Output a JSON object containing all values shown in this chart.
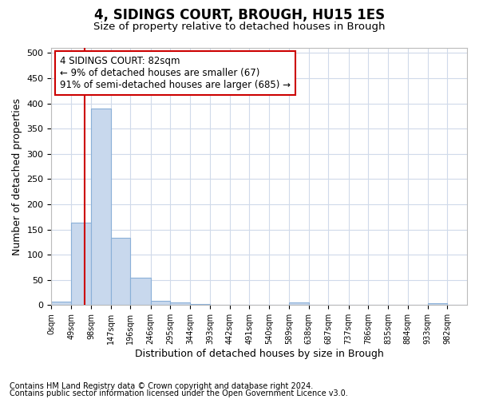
{
  "title1": "4, SIDINGS COURT, BROUGH, HU15 1ES",
  "title2": "Size of property relative to detached houses in Brough",
  "xlabel": "Distribution of detached houses by size in Brough",
  "ylabel": "Number of detached properties",
  "bin_edges": [
    0,
    49,
    98,
    147,
    196,
    246,
    295,
    344,
    393,
    442,
    491,
    540,
    589,
    638,
    687,
    737,
    786,
    835,
    884,
    933,
    982,
    1031
  ],
  "bin_labels": [
    "0sqm",
    "49sqm",
    "98sqm",
    "147sqm",
    "196sqm",
    "246sqm",
    "295sqm",
    "344sqm",
    "393sqm",
    "442sqm",
    "491sqm",
    "540sqm",
    "589sqm",
    "638sqm",
    "687sqm",
    "737sqm",
    "786sqm",
    "835sqm",
    "884sqm",
    "933sqm",
    "982sqm"
  ],
  "counts": [
    7,
    163,
    390,
    133,
    55,
    8,
    6,
    2,
    0,
    0,
    0,
    0,
    5,
    0,
    0,
    0,
    0,
    0,
    0,
    4,
    0
  ],
  "bar_color": "#c8d8ed",
  "bar_edge_color": "#8ab0d8",
  "property_value": 82,
  "annotation_line1": "4 SIDINGS COURT: 82sqm",
  "annotation_line2": "← 9% of detached houses are smaller (67)",
  "annotation_line3": "91% of semi-detached houses are larger (685) →",
  "vline_color": "#cc0000",
  "annotation_box_edgecolor": "#cc0000",
  "ylim": [
    0,
    510
  ],
  "yticks": [
    0,
    50,
    100,
    150,
    200,
    250,
    300,
    350,
    400,
    450,
    500
  ],
  "footer1": "Contains HM Land Registry data © Crown copyright and database right 2024.",
  "footer2": "Contains public sector information licensed under the Open Government Licence v3.0.",
  "bg_color": "#ffffff",
  "plot_bg_color": "#ffffff",
  "grid_color": "#d0daea"
}
